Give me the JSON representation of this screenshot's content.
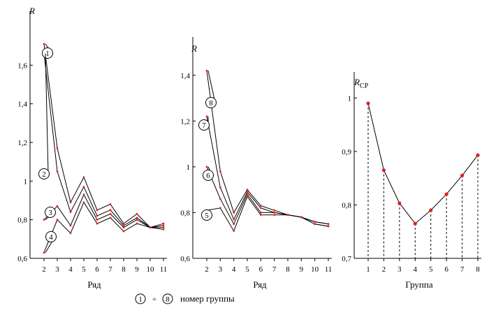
{
  "figure": {
    "legend_label_start": "1",
    "legend_label_end": "8",
    "legend_separator": "÷",
    "legend_text": "номер группы"
  },
  "chart_data": [
    {
      "type": "line",
      "panel": "left",
      "ylabel": "R",
      "xlabel": "Ряд",
      "x": [
        2,
        3,
        4,
        5,
        6,
        7,
        8,
        9,
        10,
        11
      ],
      "xticks": [
        "2",
        "3",
        "4",
        "5",
        "6",
        "7",
        "8",
        "9",
        "10",
        "11"
      ],
      "ylim": [
        0.6,
        1.8
      ],
      "yticks": [
        "0,6",
        "0,8",
        "1",
        "1,2",
        "1,4",
        "1,6"
      ],
      "ytick_values": [
        0.6,
        0.8,
        1.0,
        1.2,
        1.4,
        1.6
      ],
      "series": [
        {
          "name": "1",
          "values": [
            1.71,
            1.17,
            0.89,
            1.02,
            0.85,
            0.88,
            0.78,
            0.83,
            0.76,
            0.78
          ]
        },
        {
          "name": "2",
          "values": [
            1.66,
            1.05,
            0.84,
            0.97,
            0.82,
            0.85,
            0.77,
            0.81,
            0.76,
            0.77
          ]
        },
        {
          "name": "3",
          "values": [
            0.8,
            0.87,
            0.77,
            0.93,
            0.8,
            0.83,
            0.76,
            0.8,
            0.76,
            0.76
          ]
        },
        {
          "name": "4",
          "values": [
            0.63,
            0.8,
            0.73,
            0.89,
            0.78,
            0.81,
            0.74,
            0.78,
            0.76,
            0.75
          ]
        }
      ],
      "callouts": [
        "1",
        "2",
        "3",
        "4"
      ]
    },
    {
      "type": "line",
      "panel": "middle",
      "ylabel": "R",
      "xlabel": "Ряд",
      "x": [
        2,
        3,
        4,
        5,
        6,
        7,
        8,
        9,
        10,
        11
      ],
      "xticks": [
        "2",
        "3",
        "4",
        "5",
        "6",
        "7",
        "8",
        "9",
        "10",
        "11"
      ],
      "ylim": [
        0.6,
        1.5
      ],
      "yticks": [
        "0,6",
        "0,8",
        "1",
        "1,2",
        "1,4"
      ],
      "ytick_values": [
        0.6,
        0.8,
        1.0,
        1.2,
        1.4
      ],
      "series": [
        {
          "name": "8",
          "values": [
            1.42,
            0.98,
            0.8,
            0.9,
            0.83,
            0.81,
            0.79,
            0.78,
            0.76,
            0.75
          ]
        },
        {
          "name": "7",
          "values": [
            1.22,
            0.91,
            0.77,
            0.89,
            0.82,
            0.8,
            0.79,
            0.78,
            0.76,
            0.75
          ]
        },
        {
          "name": "6",
          "values": [
            1.0,
            0.86,
            0.75,
            0.88,
            0.8,
            0.8,
            0.79,
            0.78,
            0.75,
            0.74
          ]
        },
        {
          "name": "5",
          "values": [
            0.81,
            0.82,
            0.72,
            0.87,
            0.79,
            0.79,
            0.79,
            0.78,
            0.75,
            0.74
          ]
        }
      ],
      "callouts": [
        "8",
        "7",
        "6",
        "5"
      ]
    },
    {
      "type": "line",
      "panel": "right",
      "ylabel_main": "R",
      "ylabel_sub": "СР",
      "xlabel": "Группа",
      "x": [
        1,
        2,
        3,
        4,
        5,
        6,
        7,
        8
      ],
      "xticks": [
        "1",
        "2",
        "3",
        "4",
        "5",
        "6",
        "7",
        "8"
      ],
      "ylim": [
        0.7,
        1.02
      ],
      "yticks": [
        "0,7",
        "0,8",
        "0,9",
        "1"
      ],
      "ytick_values": [
        0.7,
        0.8,
        0.9,
        1.0
      ],
      "series": [
        {
          "name": "R_ср",
          "values": [
            0.99,
            0.865,
            0.803,
            0.765,
            0.79,
            0.82,
            0.855,
            0.893
          ]
        }
      ],
      "drop_lines": true
    }
  ]
}
